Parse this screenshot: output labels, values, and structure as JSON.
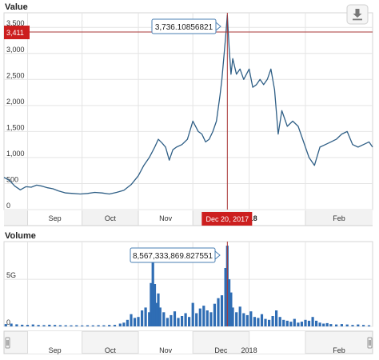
{
  "chart_data": [
    {
      "type": "line",
      "title": "Value",
      "color": "#2f5f86",
      "yticks": [
        0,
        500,
        1000,
        1500,
        2000,
        2500,
        3000,
        3500
      ],
      "yticklabels": [
        "0",
        "500",
        "1,000",
        "1,500",
        "2,000",
        "2,500",
        "3,000",
        "3,500"
      ],
      "ylim": [
        0,
        3780
      ],
      "xlim": [
        "2017-08-19",
        "2018-03-10"
      ],
      "xticks": [
        {
          "date": "2017-09-01",
          "label": "Sep",
          "bold": false
        },
        {
          "date": "2017-10-01",
          "label": "Oct",
          "bold": false
        },
        {
          "date": "2017-11-01",
          "label": "Nov",
          "bold": false
        },
        {
          "date": "2017-12-01",
          "label": "Dec",
          "bold": false
        },
        {
          "date": "2018-01-01",
          "label": "2018",
          "bold": true
        },
        {
          "date": "2018-02-01",
          "label": "Feb",
          "bold": false
        }
      ],
      "crosshair": {
        "date": "Dec 20, 2017",
        "x": "2017-12-20",
        "value_label": "3,736.10856821",
        "y_label": "3,411",
        "y": 3411
      },
      "accent_colors": {
        "crosshair": "#a83535",
        "flag": "#cc1f1f"
      },
      "series": [
        {
          "x": [
            "2017-08-19",
            "2017-08-22",
            "2017-08-25",
            "2017-08-28",
            "2017-08-31",
            "2017-09-03",
            "2017-09-06",
            "2017-09-09",
            "2017-09-12",
            "2017-09-15",
            "2017-09-18",
            "2017-09-22",
            "2017-09-26",
            "2017-09-30",
            "2017-10-04",
            "2017-10-08",
            "2017-10-12",
            "2017-10-16",
            "2017-10-20",
            "2017-10-24",
            "2017-10-28",
            "2017-11-01",
            "2017-11-04",
            "2017-11-07",
            "2017-11-10",
            "2017-11-12",
            "2017-11-14",
            "2017-11-16",
            "2017-11-18",
            "2017-11-20",
            "2017-11-22",
            "2017-11-25",
            "2017-11-28",
            "2017-12-01",
            "2017-12-04",
            "2017-12-06",
            "2017-12-08",
            "2017-12-10",
            "2017-12-12",
            "2017-12-14",
            "2017-12-16",
            "2017-12-17",
            "2017-12-18",
            "2017-12-19",
            "2017-12-20",
            "2017-12-21",
            "2017-12-22",
            "2017-12-23",
            "2017-12-25",
            "2017-12-27",
            "2017-12-29",
            "2018-01-01",
            "2018-01-03",
            "2018-01-05",
            "2018-01-07",
            "2018-01-09",
            "2018-01-11",
            "2018-01-13",
            "2018-01-15",
            "2018-01-17",
            "2018-01-19",
            "2018-01-22",
            "2018-01-25",
            "2018-01-28",
            "2018-01-31",
            "2018-02-03",
            "2018-02-06",
            "2018-02-09",
            "2018-02-12",
            "2018-02-15",
            "2018-02-18",
            "2018-02-21",
            "2018-02-24",
            "2018-02-27",
            "2018-03-02",
            "2018-03-05",
            "2018-03-08",
            "2018-03-10"
          ],
          "y": [
            620,
            560,
            450,
            380,
            440,
            430,
            470,
            450,
            420,
            400,
            360,
            320,
            310,
            300,
            310,
            330,
            320,
            300,
            330,
            370,
            480,
            650,
            850,
            1000,
            1200,
            1350,
            1280,
            1200,
            950,
            1150,
            1200,
            1250,
            1350,
            1700,
            1500,
            1450,
            1300,
            1350,
            1500,
            1700,
            2200,
            2500,
            2900,
            3300,
            3736,
            3100,
            2600,
            2900,
            2600,
            2700,
            2500,
            2700,
            2350,
            2400,
            2500,
            2400,
            2500,
            2700,
            2300,
            1450,
            1900,
            1600,
            1700,
            1600,
            1300,
            1000,
            850,
            1200,
            1250,
            1300,
            1350,
            1450,
            1500,
            1250,
            1200,
            1250,
            1300,
            1200
          ]
        }
      ]
    },
    {
      "type": "bar",
      "title": "Volume",
      "color": "#2f6db4",
      "yticks": [
        0,
        5000000000
      ],
      "yticklabels": [
        "0",
        "5G"
      ],
      "ylim": [
        0,
        9000000000
      ],
      "xlim": [
        "2017-08-19",
        "2018-03-10"
      ],
      "xticks": [
        {
          "date": "2017-09-01",
          "label": "Sep",
          "bold": false
        },
        {
          "date": "2017-10-01",
          "label": "Oct",
          "bold": false
        },
        {
          "date": "2017-11-01",
          "label": "Nov",
          "bold": false
        },
        {
          "date": "2017-12-01",
          "label": "Dec",
          "bold": false
        },
        {
          "date": "2018-01-01",
          "label": "2018",
          "bold": true
        },
        {
          "date": "2018-02-01",
          "label": "Feb",
          "bold": false
        }
      ],
      "crosshair": {
        "x": "2017-12-20",
        "value_label": "8,567,333,869.827551"
      },
      "points": [
        {
          "x": "2017-08-20",
          "y": 250000000
        },
        {
          "x": "2017-08-23",
          "y": 300000000
        },
        {
          "x": "2017-08-26",
          "y": 220000000
        },
        {
          "x": "2017-08-29",
          "y": 180000000
        },
        {
          "x": "2017-09-01",
          "y": 160000000
        },
        {
          "x": "2017-09-04",
          "y": 200000000
        },
        {
          "x": "2017-09-07",
          "y": 150000000
        },
        {
          "x": "2017-09-10",
          "y": 140000000
        },
        {
          "x": "2017-09-13",
          "y": 180000000
        },
        {
          "x": "2017-09-16",
          "y": 150000000
        },
        {
          "x": "2017-09-19",
          "y": 130000000
        },
        {
          "x": "2017-09-22",
          "y": 120000000
        },
        {
          "x": "2017-09-25",
          "y": 110000000
        },
        {
          "x": "2017-09-28",
          "y": 120000000
        },
        {
          "x": "2017-10-01",
          "y": 100000000
        },
        {
          "x": "2017-10-04",
          "y": 120000000
        },
        {
          "x": "2017-10-07",
          "y": 110000000
        },
        {
          "x": "2017-10-10",
          "y": 130000000
        },
        {
          "x": "2017-10-13",
          "y": 120000000
        },
        {
          "x": "2017-10-16",
          "y": 150000000
        },
        {
          "x": "2017-10-19",
          "y": 160000000
        },
        {
          "x": "2017-10-22",
          "y": 300000000
        },
        {
          "x": "2017-10-24",
          "y": 400000000
        },
        {
          "x": "2017-10-26",
          "y": 700000000
        },
        {
          "x": "2017-10-28",
          "y": 1300000000
        },
        {
          "x": "2017-10-30",
          "y": 900000000
        },
        {
          "x": "2017-11-01",
          "y": 1000000000
        },
        {
          "x": "2017-11-03",
          "y": 1700000000
        },
        {
          "x": "2017-11-05",
          "y": 2000000000
        },
        {
          "x": "2017-11-07",
          "y": 1500000000
        },
        {
          "x": "2017-11-08",
          "y": 4600000000
        },
        {
          "x": "2017-11-09",
          "y": 7500000000
        },
        {
          "x": "2017-11-10",
          "y": 4500000000
        },
        {
          "x": "2017-11-11",
          "y": 2500000000
        },
        {
          "x": "2017-11-12",
          "y": 3500000000
        },
        {
          "x": "2017-11-13",
          "y": 2000000000
        },
        {
          "x": "2017-11-15",
          "y": 1500000000
        },
        {
          "x": "2017-11-17",
          "y": 900000000
        },
        {
          "x": "2017-11-19",
          "y": 1200000000
        },
        {
          "x": "2017-11-21",
          "y": 1600000000
        },
        {
          "x": "2017-11-23",
          "y": 900000000
        },
        {
          "x": "2017-11-25",
          "y": 1100000000
        },
        {
          "x": "2017-11-27",
          "y": 1400000000
        },
        {
          "x": "2017-11-29",
          "y": 1000000000
        },
        {
          "x": "2017-12-01",
          "y": 2500000000
        },
        {
          "x": "2017-12-03",
          "y": 1400000000
        },
        {
          "x": "2017-12-05",
          "y": 1900000000
        },
        {
          "x": "2017-12-07",
          "y": 2200000000
        },
        {
          "x": "2017-12-09",
          "y": 1700000000
        },
        {
          "x": "2017-12-11",
          "y": 1500000000
        },
        {
          "x": "2017-12-13",
          "y": 2400000000
        },
        {
          "x": "2017-12-15",
          "y": 3000000000
        },
        {
          "x": "2017-12-17",
          "y": 3300000000
        },
        {
          "x": "2017-12-19",
          "y": 6200000000
        },
        {
          "x": "2017-12-20",
          "y": 8567333869
        },
        {
          "x": "2017-12-21",
          "y": 5000000000
        },
        {
          "x": "2017-12-22",
          "y": 3600000000
        },
        {
          "x": "2017-12-23",
          "y": 2000000000
        },
        {
          "x": "2017-12-25",
          "y": 1500000000
        },
        {
          "x": "2017-12-27",
          "y": 2100000000
        },
        {
          "x": "2017-12-29",
          "y": 1400000000
        },
        {
          "x": "2017-12-31",
          "y": 1200000000
        },
        {
          "x": "2018-01-02",
          "y": 1600000000
        },
        {
          "x": "2018-01-04",
          "y": 1000000000
        },
        {
          "x": "2018-01-06",
          "y": 900000000
        },
        {
          "x": "2018-01-08",
          "y": 1300000000
        },
        {
          "x": "2018-01-10",
          "y": 800000000
        },
        {
          "x": "2018-01-12",
          "y": 700000000
        },
        {
          "x": "2018-01-14",
          "y": 1100000000
        },
        {
          "x": "2018-01-16",
          "y": 1700000000
        },
        {
          "x": "2018-01-18",
          "y": 1000000000
        },
        {
          "x": "2018-01-20",
          "y": 700000000
        },
        {
          "x": "2018-01-22",
          "y": 600000000
        },
        {
          "x": "2018-01-24",
          "y": 500000000
        },
        {
          "x": "2018-01-26",
          "y": 800000000
        },
        {
          "x": "2018-01-28",
          "y": 400000000
        },
        {
          "x": "2018-01-30",
          "y": 500000000
        },
        {
          "x": "2018-02-01",
          "y": 700000000
        },
        {
          "x": "2018-02-03",
          "y": 600000000
        },
        {
          "x": "2018-02-05",
          "y": 1000000000
        },
        {
          "x": "2018-02-07",
          "y": 600000000
        },
        {
          "x": "2018-02-09",
          "y": 400000000
        },
        {
          "x": "2018-02-11",
          "y": 300000000
        },
        {
          "x": "2018-02-13",
          "y": 350000000
        },
        {
          "x": "2018-02-15",
          "y": 250000000
        },
        {
          "x": "2018-02-18",
          "y": 200000000
        },
        {
          "x": "2018-02-21",
          "y": 250000000
        },
        {
          "x": "2018-02-24",
          "y": 200000000
        },
        {
          "x": "2018-02-27",
          "y": 150000000
        },
        {
          "x": "2018-03-02",
          "y": 200000000
        },
        {
          "x": "2018-03-05",
          "y": 150000000
        },
        {
          "x": "2018-03-08",
          "y": 120000000
        }
      ]
    }
  ],
  "export_button": {
    "icon": "download-icon"
  }
}
